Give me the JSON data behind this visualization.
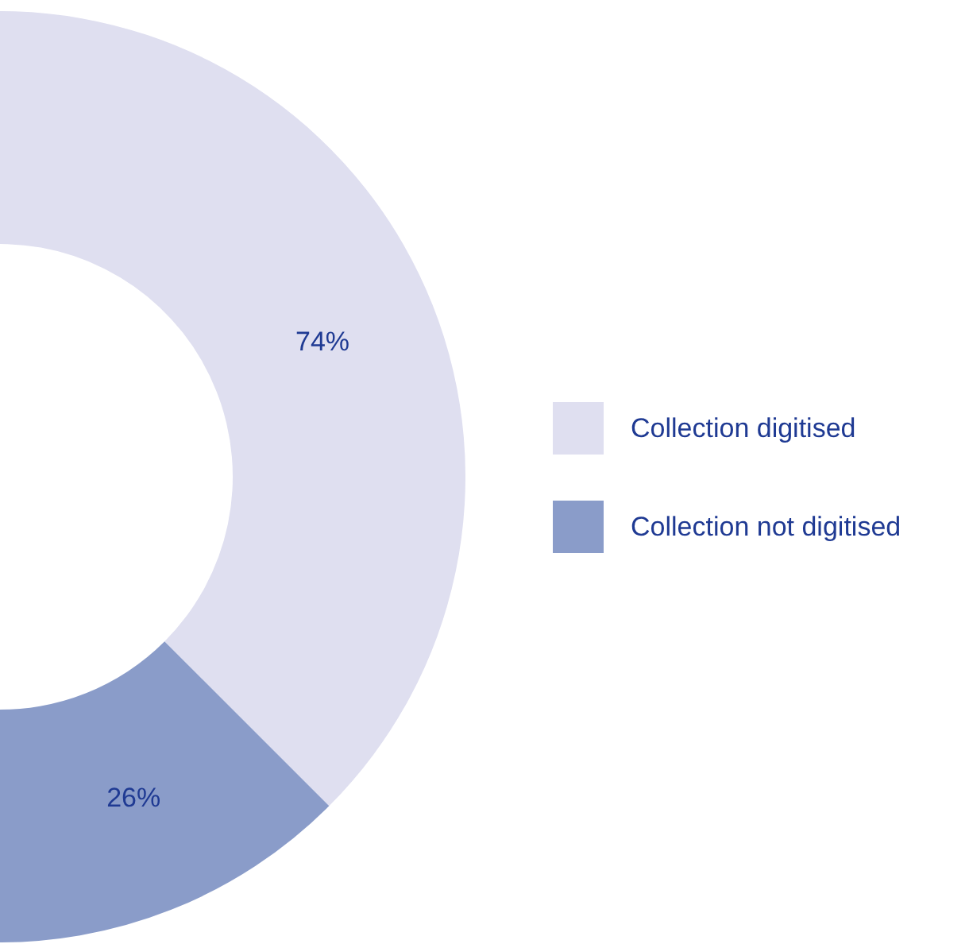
{
  "chart_data": {
    "type": "donut",
    "categories": [
      "Collection digitised",
      "Collection not digitised"
    ],
    "values": [
      74,
      26
    ],
    "colors": [
      "#dfdff0",
      "#8a9cc9"
    ],
    "value_labels": [
      "74%",
      "26%"
    ],
    "legend": "right"
  }
}
